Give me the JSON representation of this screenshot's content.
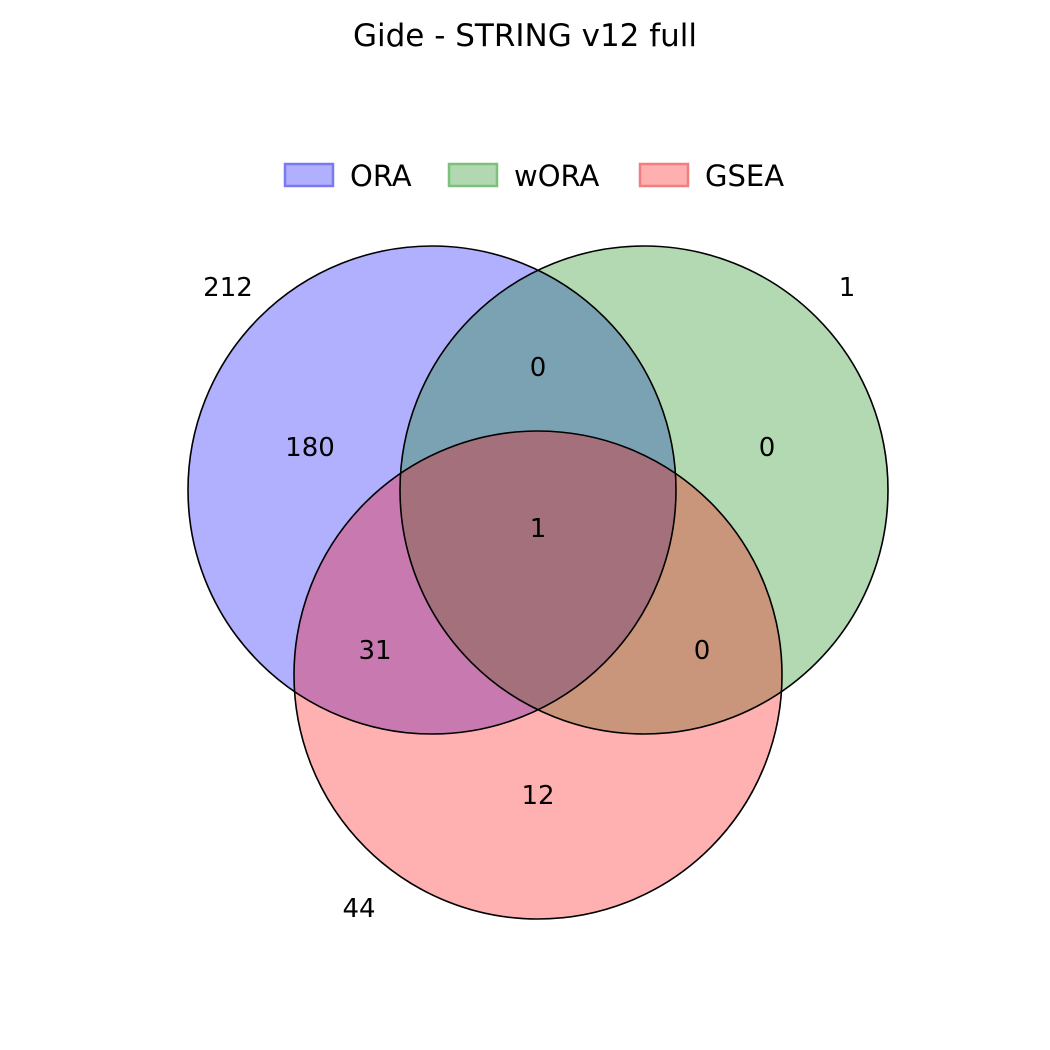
{
  "title": "Gide - STRING v12 full",
  "legend": [
    {
      "label": "ORA",
      "fill": "#b0b0fc",
      "edge": "#7a7af0"
    },
    {
      "label": "wORA",
      "fill": "#b2d8b2",
      "edge": "#7cc07c"
    },
    {
      "label": "GSEA",
      "fill": "#feafaf",
      "edge": "#f27f7f"
    }
  ],
  "sets": [
    {
      "name": "ORA",
      "total": "212",
      "color": "#0000ff"
    },
    {
      "name": "wORA",
      "total": "1",
      "color": "#008000"
    },
    {
      "name": "GSEA",
      "total": "44",
      "color": "#ff0000"
    }
  ],
  "regions": {
    "ora_only": "180",
    "wora_only": "0",
    "gsea_only": "12",
    "ora_wora": "0",
    "ora_gsea": "31",
    "wora_gsea": "0",
    "all_three": "1"
  }
}
